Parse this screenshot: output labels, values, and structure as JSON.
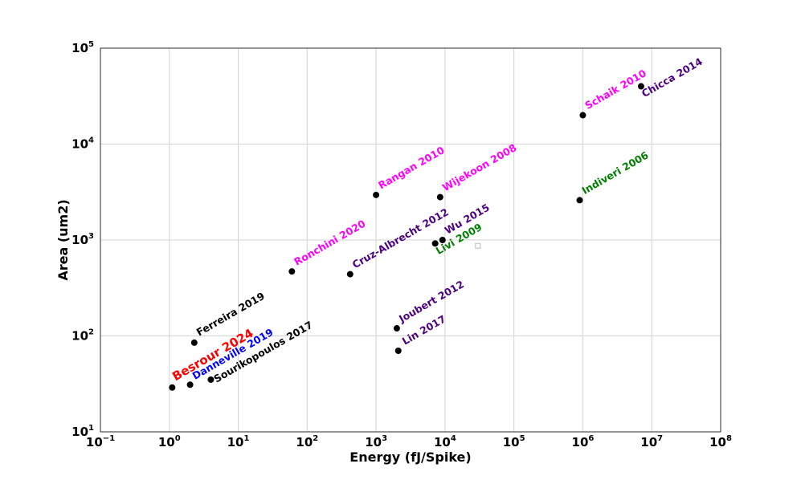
{
  "chart_data": {
    "type": "scatter",
    "title": "",
    "xlabel": "Energy (fJ/Spike)",
    "ylabel": "Area (um2)",
    "xscale": "log",
    "yscale": "log",
    "xlim": [
      0.1,
      100000000
    ],
    "ylim": [
      10,
      100000
    ],
    "grid": true,
    "x_ticks": [
      {
        "base": "10",
        "exp": "−1",
        "value": 0.1
      },
      {
        "base": "10",
        "exp": "0",
        "value": 1
      },
      {
        "base": "10",
        "exp": "1",
        "value": 10
      },
      {
        "base": "10",
        "exp": "2",
        "value": 100
      },
      {
        "base": "10",
        "exp": "3",
        "value": 1000
      },
      {
        "base": "10",
        "exp": "4",
        "value": 10000
      },
      {
        "base": "10",
        "exp": "5",
        "value": 100000
      },
      {
        "base": "10",
        "exp": "6",
        "value": 1000000
      },
      {
        "base": "10",
        "exp": "7",
        "value": 10000000
      },
      {
        "base": "10",
        "exp": "8",
        "value": 100000000
      }
    ],
    "y_ticks": [
      {
        "base": "10",
        "exp": "1",
        "value": 10
      },
      {
        "base": "10",
        "exp": "2",
        "value": 100
      },
      {
        "base": "10",
        "exp": "3",
        "value": 1000
      },
      {
        "base": "10",
        "exp": "4",
        "value": 10000
      },
      {
        "base": "10",
        "exp": "5",
        "value": 100000
      }
    ],
    "points": [
      {
        "label": "Besrour 2024",
        "x": 1.1,
        "y": 29,
        "color": "#ff0000",
        "big": true,
        "dx": 4,
        "dy": -8
      },
      {
        "label": "Danneville 2019",
        "x": 2.0,
        "y": 31,
        "color": "#0000ff",
        "big": false,
        "dx": 6,
        "dy": -6
      },
      {
        "label": "Sourikopoulos 2017",
        "x": 4.0,
        "y": 35,
        "color": "#000000",
        "big": false,
        "dx": 7,
        "dy": 4
      },
      {
        "label": "Ferreira 2019",
        "x": 2.3,
        "y": 85,
        "color": "#000000",
        "big": false,
        "dx": 6,
        "dy": -8
      },
      {
        "label": "Ronchini 2020",
        "x": 60,
        "y": 470,
        "color": "#ff00ff",
        "big": false,
        "dx": 6,
        "dy": -7
      },
      {
        "label": "Cruz-Albrecht 2012",
        "x": 420,
        "y": 440,
        "color": "#4b0082",
        "big": false,
        "dx": 6,
        "dy": -7
      },
      {
        "label": "Rangan 2010",
        "x": 1000,
        "y": 2950,
        "color": "#ff00ff",
        "big": false,
        "dx": 6,
        "dy": -7
      },
      {
        "label": "Wijekoon 2008",
        "x": 8500,
        "y": 2800,
        "color": "#ff00ff",
        "big": false,
        "dx": 6,
        "dy": -7
      },
      {
        "label": "Wu 2015",
        "x": 9200,
        "y": 1000,
        "color": "#4b0082",
        "big": false,
        "dx": 6,
        "dy": -7
      },
      {
        "label": "Livi 2009",
        "x": 7200,
        "y": 920,
        "color": "#008000",
        "big": false,
        "dx": 4,
        "dy": 14
      },
      {
        "label": "Joubert 2012",
        "x": 2000,
        "y": 120,
        "color": "#4b0082",
        "big": false,
        "dx": 6,
        "dy": -7
      },
      {
        "label": "Lin 2017",
        "x": 2100,
        "y": 70,
        "color": "#4b0082",
        "big": false,
        "dx": 8,
        "dy": -7
      },
      {
        "label": "Schaik 2010",
        "x": 1000000,
        "y": 20000,
        "color": "#ff00ff",
        "big": false,
        "dx": 6,
        "dy": -7
      },
      {
        "label": "Chicca 2014",
        "x": 7000000,
        "y": 40000,
        "color": "#4b0082",
        "big": false,
        "dx": 4,
        "dy": 14
      },
      {
        "label": "Indiveri 2006",
        "x": 900000,
        "y": 2600,
        "color": "#008000",
        "big": false,
        "dx": 6,
        "dy": -7
      }
    ],
    "marker": {
      "color": "#000000"
    },
    "hollow_marker": {
      "x": 30000,
      "y": 870,
      "color": "#bbbbbb"
    }
  }
}
